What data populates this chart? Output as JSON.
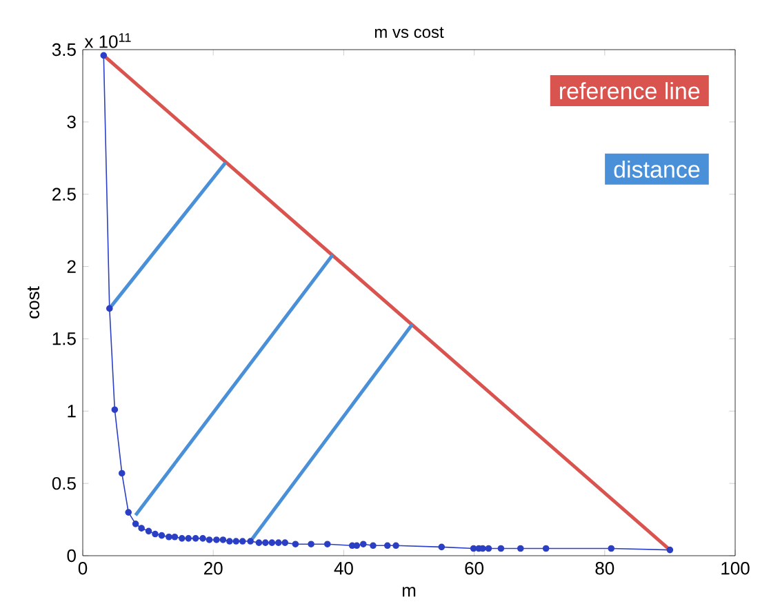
{
  "chart_data": {
    "type": "line",
    "title": "m vs cost",
    "xlabel": "m",
    "ylabel": "cost",
    "annotations": [
      "x 10$^{11}$"
    ],
    "xlim": [
      0,
      100
    ],
    "xticks": [
      0,
      20,
      40,
      60,
      80,
      100
    ],
    "ylim": [
      0,
      3.5
    ],
    "yticks": [
      0,
      0.5,
      1,
      1.5,
      2,
      2.5,
      3,
      3.5
    ],
    "legend": "top right",
    "grid": false,
    "series": [
      {
        "color": "#2b3fc4",
        "marker": "circle",
        "x": [
          3.2,
          4.1,
          4.9,
          6.0,
          7.0,
          8.1,
          9.0,
          10.1,
          11.1,
          12.1,
          13.2,
          14.1,
          15.2,
          16.2,
          17.3,
          18.4,
          19.4,
          20.5,
          21.5,
          22.5,
          23.5,
          24.5,
          25.7,
          27,
          28,
          29,
          30,
          31,
          32.6,
          35,
          37.5,
          41.3,
          42,
          43,
          44.5,
          46.7,
          48,
          55,
          59.9,
          60.7,
          61.3,
          62.2,
          64.1,
          67.1,
          71,
          81,
          90
        ],
        "values": [
          3.46,
          1.71,
          1.01,
          0.57,
          0.3,
          0.22,
          0.19,
          0.17,
          0.15,
          0.14,
          0.13,
          0.13,
          0.12,
          0.12,
          0.12,
          0.12,
          0.11,
          0.11,
          0.11,
          0.1,
          0.1,
          0.1,
          0.1,
          0.09,
          0.09,
          0.09,
          0.09,
          0.09,
          0.08,
          0.08,
          0.08,
          0.07,
          0.07,
          0.08,
          0.07,
          0.07,
          0.07,
          0.06,
          0.05,
          0.05,
          0.05,
          0.05,
          0.05,
          0.05,
          0.05,
          0.05,
          0.04
        ]
      },
      {
        "name": "reference line",
        "color": "#d9534f",
        "x": [
          3.2,
          90
        ],
        "values": [
          3.46,
          0.04
        ]
      },
      {
        "name": "distance",
        "color": "#4a90d9",
        "x": [
          4.1,
          21.9
        ],
        "values": [
          1.71,
          2.72
        ]
      },
      {
        "color": "#4a90d9",
        "x": [
          8.1,
          38.3
        ],
        "values": [
          0.28,
          2.08
        ]
      },
      {
        "color": "#4a90d9",
        "x": [
          25.7,
          50.5
        ],
        "values": [
          0.1,
          1.6
        ]
      }
    ]
  }
}
